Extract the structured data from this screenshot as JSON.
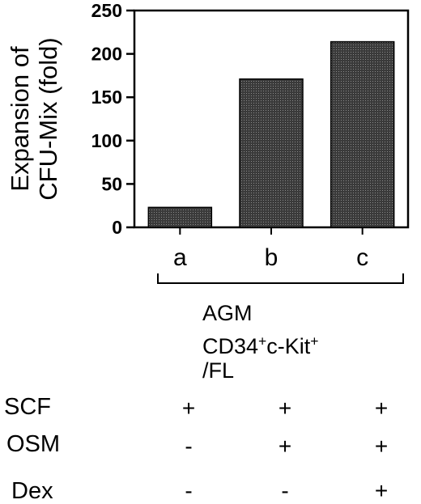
{
  "chart_data": {
    "type": "bar",
    "categories": [
      "a",
      "b",
      "c"
    ],
    "values": [
      23,
      171,
      214
    ],
    "ylabel": [
      "Expansion of",
      "CFU-Mix (fold)"
    ],
    "ylim": [
      0,
      250
    ],
    "yticks": [
      0,
      50,
      100,
      150,
      200,
      250
    ],
    "grid": false
  },
  "cell_source": {
    "line1": "AGM",
    "line2_pre": "CD34",
    "line2_sup1": "+",
    "line2_mid": "c-Kit",
    "line2_sup2": "+",
    "line3": "/FL"
  },
  "factors": [
    {
      "label": "SCF",
      "marks": [
        "+",
        "+",
        "+"
      ]
    },
    {
      "label": "OSM",
      "marks": [
        "-",
        "+",
        "+"
      ]
    },
    {
      "label": "Dex",
      "marks": [
        "-",
        "-",
        "+"
      ]
    }
  ],
  "colors": {
    "bar_fill": "#2e2e2e",
    "axis": "#000000"
  }
}
